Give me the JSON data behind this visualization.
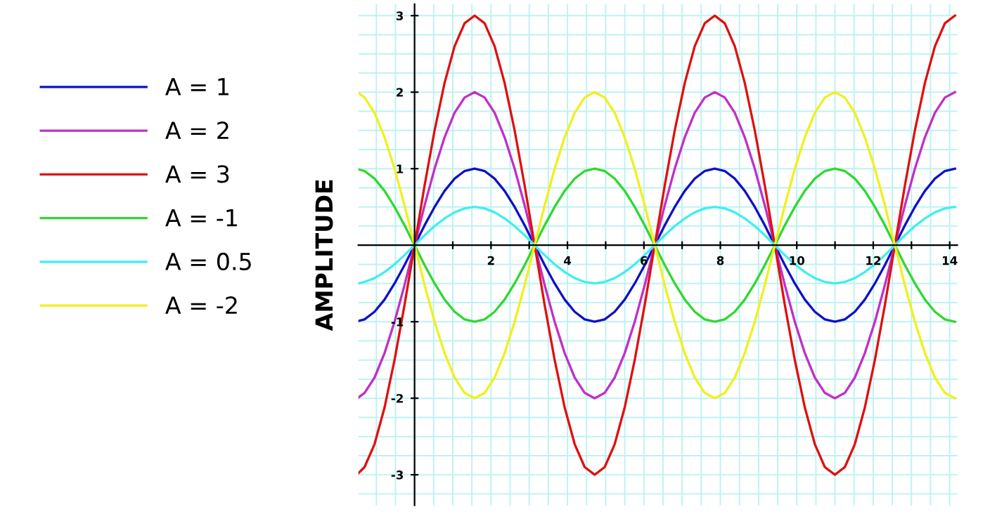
{
  "chart_data": {
    "type": "line",
    "ylabel": "AMPLITUDE",
    "x": [
      -1.47,
      -1.309,
      -1.047,
      -0.785,
      -0.524,
      -0.262,
      0,
      0.262,
      0.524,
      0.785,
      1.047,
      1.309,
      1.571,
      1.833,
      2.094,
      2.356,
      2.618,
      2.88,
      3.142,
      3.403,
      3.665,
      3.927,
      4.189,
      4.451,
      4.712,
      4.974,
      5.236,
      5.498,
      5.76,
      6.021,
      6.283,
      6.545,
      6.807,
      7.069,
      7.33,
      7.592,
      7.854,
      8.116,
      8.378,
      8.639,
      8.901,
      9.163,
      9.425,
      9.687,
      9.948,
      10.21,
      10.472,
      10.734,
      10.996,
      11.257,
      11.519,
      11.781,
      12.043,
      12.305,
      12.566,
      12.828,
      13.09,
      13.352,
      13.614,
      13.875,
      14.137
    ],
    "series": [
      {
        "name": "A = 1",
        "color": "#1010c8",
        "values": [
          -0.99,
          -0.97,
          -0.87,
          -0.71,
          -0.5,
          -0.26,
          0,
          0.26,
          0.5,
          0.71,
          0.87,
          0.97,
          1,
          0.97,
          0.87,
          0.71,
          0.5,
          0.26,
          0,
          -0.26,
          -0.5,
          -0.71,
          -0.87,
          -0.97,
          -1,
          -0.97,
          -0.87,
          -0.71,
          -0.5,
          -0.26,
          0,
          0.26,
          0.5,
          0.71,
          0.87,
          0.97,
          1,
          0.97,
          0.87,
          0.71,
          0.5,
          0.26,
          0,
          -0.26,
          -0.5,
          -0.71,
          -0.87,
          -0.97,
          -1,
          -0.97,
          -0.87,
          -0.71,
          -0.5,
          -0.26,
          0,
          0.26,
          0.5,
          0.71,
          0.87,
          0.97,
          1
        ]
      },
      {
        "name": "A = 2",
        "color": "#c030c8",
        "values": [
          -1.99,
          -1.93,
          -1.73,
          -1.41,
          -1,
          -0.52,
          0,
          0.52,
          1,
          1.41,
          1.73,
          1.93,
          2,
          1.93,
          1.73,
          1.41,
          1,
          0.52,
          0,
          -0.52,
          -1,
          -1.41,
          -1.73,
          -1.93,
          -2,
          -1.93,
          -1.73,
          -1.41,
          -1,
          -0.52,
          0,
          0.52,
          1,
          1.41,
          1.73,
          1.93,
          2,
          1.93,
          1.73,
          1.41,
          1,
          0.52,
          0,
          -0.52,
          -1,
          -1.41,
          -1.73,
          -1.93,
          -2,
          -1.93,
          -1.73,
          -1.41,
          -1,
          -0.52,
          0,
          0.52,
          1,
          1.41,
          1.73,
          1.93,
          2
        ]
      },
      {
        "name": "A = 3",
        "color": "#e01010",
        "values": [
          -2.98,
          -2.9,
          -2.6,
          -2.12,
          -1.5,
          -0.78,
          0,
          0.78,
          1.5,
          2.12,
          2.6,
          2.9,
          3,
          2.9,
          2.6,
          2.12,
          1.5,
          0.78,
          0,
          -0.78,
          -1.5,
          -2.12,
          -2.6,
          -2.9,
          -3,
          -2.9,
          -2.6,
          -2.12,
          -1.5,
          -0.78,
          0,
          0.78,
          1.5,
          2.12,
          2.6,
          2.9,
          3,
          2.9,
          2.6,
          2.12,
          1.5,
          0.78,
          0,
          -0.78,
          -1.5,
          -2.12,
          -2.6,
          -2.9,
          -3,
          -2.9,
          -2.6,
          -2.12,
          -1.5,
          -0.78,
          0,
          0.78,
          1.5,
          2.12,
          2.6,
          2.9,
          3
        ]
      },
      {
        "name": "A = -1",
        "color": "#30d830",
        "values": [
          0.99,
          0.97,
          0.87,
          0.71,
          0.5,
          0.26,
          0,
          -0.26,
          -0.5,
          -0.71,
          -0.87,
          -0.97,
          -1,
          -0.97,
          -0.87,
          -0.71,
          -0.5,
          -0.26,
          0,
          0.26,
          0.5,
          0.71,
          0.87,
          0.97,
          1,
          0.97,
          0.87,
          0.71,
          0.5,
          0.26,
          0,
          -0.26,
          -0.5,
          -0.71,
          -0.87,
          -0.97,
          -1,
          -0.97,
          -0.87,
          -0.71,
          -0.5,
          -0.26,
          0,
          0.26,
          0.5,
          0.71,
          0.87,
          0.97,
          1,
          0.97,
          0.87,
          0.71,
          0.5,
          0.26,
          0,
          -0.26,
          -0.5,
          -0.71,
          -0.87,
          -0.97,
          -1
        ]
      },
      {
        "name": "A = 0.5",
        "color": "#40eef0",
        "values": [
          -0.5,
          -0.48,
          -0.43,
          -0.35,
          -0.25,
          -0.13,
          0,
          0.13,
          0.25,
          0.35,
          0.43,
          0.48,
          0.5,
          0.48,
          0.43,
          0.35,
          0.25,
          0.13,
          0,
          -0.13,
          -0.25,
          -0.35,
          -0.43,
          -0.48,
          -0.5,
          -0.48,
          -0.43,
          -0.35,
          -0.25,
          -0.13,
          0,
          0.13,
          0.25,
          0.35,
          0.43,
          0.48,
          0.5,
          0.48,
          0.43,
          0.35,
          0.25,
          0.13,
          0,
          -0.13,
          -0.25,
          -0.35,
          -0.43,
          -0.48,
          -0.5,
          -0.48,
          -0.43,
          -0.35,
          -0.25,
          -0.13,
          0,
          0.13,
          0.25,
          0.35,
          0.43,
          0.48,
          0.5
        ]
      },
      {
        "name": "A = -2",
        "color": "#f0f020",
        "values": [
          1.99,
          1.93,
          1.73,
          1.41,
          1,
          0.52,
          0,
          -0.52,
          -1,
          -1.41,
          -1.73,
          -1.93,
          -2,
          -1.93,
          -1.73,
          -1.41,
          -1,
          -0.52,
          0,
          0.52,
          1,
          1.41,
          1.73,
          1.93,
          2,
          1.93,
          1.73,
          1.41,
          1,
          0.52,
          0,
          -0.52,
          -1,
          -1.41,
          -1.73,
          -1.93,
          -2,
          -1.93,
          -1.73,
          -1.41,
          -1,
          -0.52,
          0,
          0.52,
          1,
          1.41,
          1.73,
          1.93,
          2,
          1.93,
          1.73,
          1.41,
          1,
          0.52,
          0,
          -0.52,
          -1,
          -1.41,
          -1.73,
          -1.93,
          -2
        ]
      }
    ],
    "xlim": [
      -1.47,
      14.2
    ],
    "ylim": [
      -3.4,
      3.15
    ],
    "xticks": [
      {
        "value": 1,
        "label": null
      },
      2,
      {
        "value": 3,
        "label": null
      },
      4,
      {
        "value": 5,
        "label": null
      },
      6,
      {
        "value": 7,
        "label": null
      },
      8,
      {
        "value": 9,
        "label": null
      },
      10,
      {
        "value": 11,
        "label": null
      },
      12,
      {
        "value": 13,
        "label": null
      },
      14
    ],
    "yticks": [
      -3,
      -2,
      -1,
      1,
      2,
      3
    ],
    "grid": true,
    "legend": "left",
    "marker": "none",
    "line_style": "solid"
  }
}
